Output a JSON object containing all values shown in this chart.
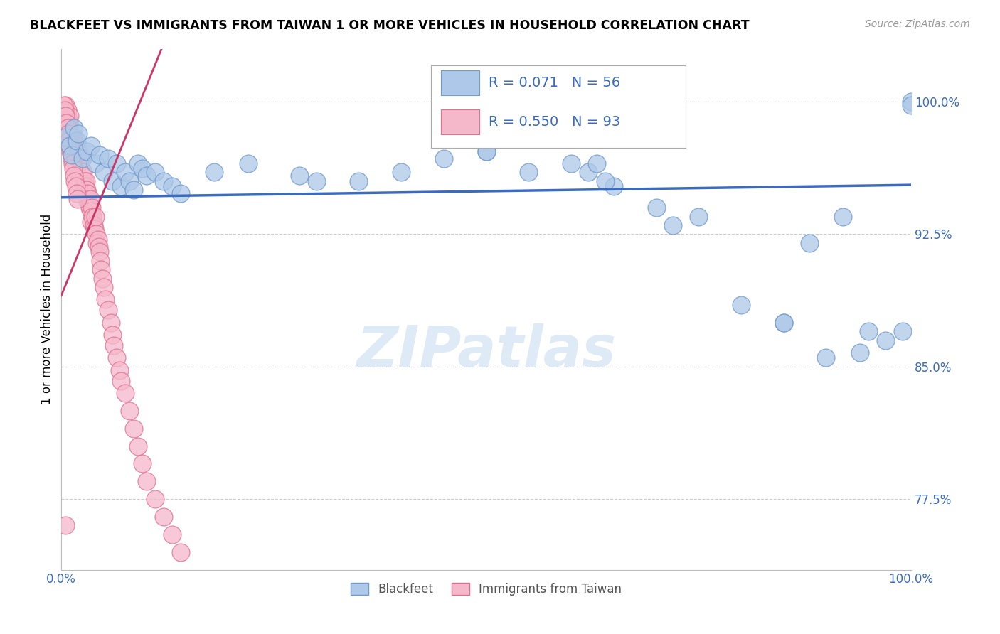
{
  "title": "BLACKFEET VS IMMIGRANTS FROM TAIWAN 1 OR MORE VEHICLES IN HOUSEHOLD CORRELATION CHART",
  "source": "Source: ZipAtlas.com",
  "ylabel": "1 or more Vehicles in Household",
  "xlim": [
    0.0,
    1.0
  ],
  "ylim": [
    0.735,
    1.03
  ],
  "yticks": [
    0.775,
    0.85,
    0.925,
    1.0
  ],
  "ytick_labels": [
    "77.5%",
    "85.0%",
    "92.5%",
    "100.0%"
  ],
  "xticks": [
    0.0,
    0.2,
    0.4,
    0.6,
    0.8,
    1.0
  ],
  "xtick_labels": [
    "0.0%",
    "",
    "",
    "",
    "",
    "100.0%"
  ],
  "blue_R": 0.071,
  "blue_N": 56,
  "pink_R": 0.55,
  "pink_N": 93,
  "blue_color": "#adc8e8",
  "pink_color": "#f5b8cb",
  "blue_edge": "#7099cc",
  "pink_edge": "#e07090",
  "trend_blue": "#3a6bbf",
  "trend_pink": "#cc3366",
  "legend_label_blue": "Blackfeet",
  "legend_label_pink": "Immigrants from Taiwan",
  "watermark": "ZIPatlas",
  "blue_x": [
    0.005,
    0.01,
    0.012,
    0.015,
    0.018,
    0.02,
    0.025,
    0.03,
    0.035,
    0.04,
    0.045,
    0.05,
    0.055,
    0.06,
    0.065,
    0.07,
    0.075,
    0.08,
    0.085,
    0.09,
    0.095,
    0.1,
    0.11,
    0.12,
    0.13,
    0.14,
    0.18,
    0.22,
    0.28,
    0.35,
    0.4,
    0.45,
    0.5,
    0.55,
    0.6,
    0.65,
    0.7,
    0.75,
    0.8,
    0.85,
    0.9,
    0.95,
    1.0,
    0.62,
    0.63,
    0.64,
    0.72,
    0.85,
    0.88,
    0.92,
    0.94,
    0.97,
    0.99,
    1.0,
    0.3,
    0.5
  ],
  "blue_y": [
    0.98,
    0.975,
    0.97,
    0.985,
    0.978,
    0.982,
    0.968,
    0.972,
    0.975,
    0.965,
    0.97,
    0.96,
    0.968,
    0.955,
    0.965,
    0.952,
    0.96,
    0.955,
    0.95,
    0.965,
    0.962,
    0.958,
    0.96,
    0.955,
    0.952,
    0.948,
    0.96,
    0.965,
    0.958,
    0.955,
    0.96,
    0.968,
    0.972,
    0.96,
    0.965,
    0.952,
    0.94,
    0.935,
    0.885,
    0.875,
    0.855,
    0.87,
    1.0,
    0.96,
    0.965,
    0.955,
    0.93,
    0.875,
    0.92,
    0.935,
    0.858,
    0.865,
    0.87,
    0.998,
    0.955,
    0.972
  ],
  "pink_x": [
    0.005,
    0.005,
    0.006,
    0.007,
    0.008,
    0.008,
    0.009,
    0.01,
    0.01,
    0.011,
    0.012,
    0.012,
    0.013,
    0.014,
    0.015,
    0.015,
    0.016,
    0.017,
    0.018,
    0.018,
    0.019,
    0.02,
    0.02,
    0.021,
    0.022,
    0.022,
    0.023,
    0.024,
    0.025,
    0.025,
    0.026,
    0.027,
    0.028,
    0.028,
    0.029,
    0.03,
    0.03,
    0.031,
    0.032,
    0.033,
    0.034,
    0.035,
    0.035,
    0.036,
    0.037,
    0.038,
    0.039,
    0.04,
    0.041,
    0.042,
    0.043,
    0.044,
    0.045,
    0.046,
    0.047,
    0.048,
    0.05,
    0.052,
    0.055,
    0.058,
    0.06,
    0.062,
    0.065,
    0.068,
    0.07,
    0.075,
    0.08,
    0.085,
    0.09,
    0.095,
    0.1,
    0.11,
    0.12,
    0.13,
    0.14,
    0.003,
    0.004,
    0.005,
    0.006,
    0.007,
    0.008,
    0.009,
    0.01,
    0.011,
    0.012,
    0.013,
    0.014,
    0.015,
    0.016,
    0.017,
    0.018,
    0.019,
    0.005
  ],
  "pink_y": [
    0.998,
    0.992,
    0.988,
    0.995,
    0.99,
    0.985,
    0.988,
    0.992,
    0.98,
    0.978,
    0.982,
    0.975,
    0.98,
    0.972,
    0.978,
    0.968,
    0.975,
    0.97,
    0.972,
    0.965,
    0.968,
    0.972,
    0.96,
    0.965,
    0.968,
    0.958,
    0.962,
    0.96,
    0.958,
    0.952,
    0.96,
    0.955,
    0.952,
    0.948,
    0.955,
    0.95,
    0.945,
    0.948,
    0.942,
    0.94,
    0.945,
    0.938,
    0.932,
    0.94,
    0.935,
    0.93,
    0.928,
    0.935,
    0.925,
    0.92,
    0.922,
    0.918,
    0.915,
    0.91,
    0.905,
    0.9,
    0.895,
    0.888,
    0.882,
    0.875,
    0.868,
    0.862,
    0.855,
    0.848,
    0.842,
    0.835,
    0.825,
    0.815,
    0.805,
    0.795,
    0.785,
    0.775,
    0.765,
    0.755,
    0.745,
    0.998,
    0.995,
    0.992,
    0.988,
    0.985,
    0.982,
    0.978,
    0.975,
    0.972,
    0.968,
    0.965,
    0.962,
    0.958,
    0.955,
    0.952,
    0.948,
    0.945,
    0.76
  ]
}
